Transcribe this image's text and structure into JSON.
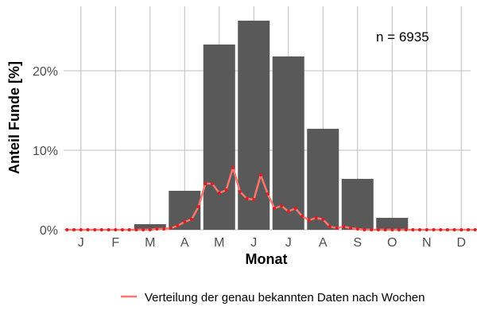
{
  "chart_data": {
    "type": "bar",
    "xlabel": "Monat",
    "ylabel": "Anteil Funde [%]",
    "annotation": "n = 6935",
    "categories": [
      "J",
      "F",
      "M",
      "A",
      "M",
      "J",
      "J",
      "A",
      "S",
      "O",
      "N",
      "D"
    ],
    "ylim": [
      0,
      28
    ],
    "y_ticks": [
      0,
      10,
      20
    ],
    "y_tick_labels": [
      "0%",
      "10%",
      "20%"
    ],
    "grid": true,
    "legend_position": "bottom",
    "colors": {
      "bar": "#595959",
      "line": "#f8766d",
      "point": "#e8191e",
      "grid": "#bebebe"
    },
    "series": [
      {
        "kind": "bar",
        "values": [
          0.1,
          0.1,
          0.7,
          4.9,
          23.3,
          26.3,
          21.8,
          12.7,
          6.4,
          1.5,
          0.1,
          0.1
        ]
      },
      {
        "kind": "line",
        "name": "Verteilung der genau bekannten Daten nach Wochen",
        "x": [
          0.1,
          0.3,
          0.5,
          0.7,
          0.9,
          1.1,
          1.3,
          1.5,
          1.7,
          1.9,
          2.1,
          2.3,
          2.5,
          2.7,
          2.9,
          3.1,
          3.3,
          3.5,
          3.7,
          3.9,
          4.1,
          4.3,
          4.5,
          4.7,
          4.9,
          5.1,
          5.3,
          5.5,
          5.7,
          5.9,
          6.1,
          6.3,
          6.5,
          6.7,
          6.9,
          7.1,
          7.3,
          7.5,
          7.7,
          7.9,
          8.1,
          8.3,
          8.5,
          8.7,
          8.9,
          9.1,
          9.3,
          9.5,
          9.7,
          9.9,
          10.1,
          10.3,
          10.5,
          10.7,
          10.9,
          11.1,
          11.3,
          11.5,
          11.7,
          11.9
        ],
        "values": [
          0,
          0,
          0,
          0,
          0,
          0,
          0,
          0,
          0,
          0,
          0,
          0,
          0,
          0.1,
          0.1,
          0.2,
          0.5,
          1.0,
          1.3,
          2.9,
          5.8,
          5.8,
          4.6,
          5.0,
          7.8,
          4.8,
          3.9,
          3.8,
          6.9,
          4.5,
          2.7,
          3.0,
          2.3,
          2.7,
          1.7,
          1.2,
          1.5,
          1.3,
          0.4,
          0.2,
          0.4,
          0.2,
          0.1,
          0,
          0,
          0,
          0,
          0,
          0,
          0,
          0,
          0,
          0,
          0,
          0,
          0,
          0,
          0,
          0,
          0
        ]
      }
    ]
  }
}
